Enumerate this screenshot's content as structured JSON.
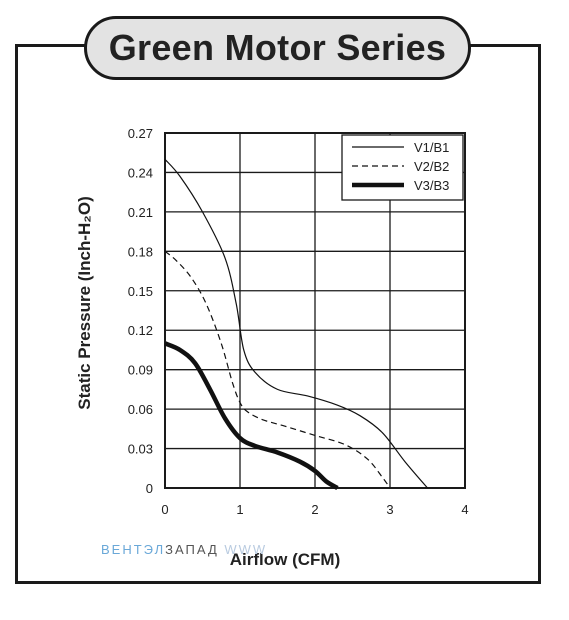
{
  "header": {
    "title": "Green Motor Series"
  },
  "watermark": {
    "part1": "ВЕНТЭЛ",
    "part2": "ЗАПАД",
    "part3": "WWW"
  },
  "colors": {
    "frame": "#1a1a1a",
    "title_fill": "#e3e3e3",
    "watermark_blue": "#6aa8d8"
  },
  "chart_data": {
    "type": "line",
    "title": "",
    "xlabel": "Airflow (CFM)",
    "ylabel": "Static Pressure (Inch-H₂O)",
    "xlim": [
      0,
      4
    ],
    "ylim": [
      0,
      0.27
    ],
    "xticks": [
      "0",
      "1",
      "2",
      "3",
      "4"
    ],
    "yticks": [
      "0",
      "0.03",
      "0.06",
      "0.09",
      "0.12",
      "0.15",
      "0.18",
      "0.21",
      "0.24",
      "0.27"
    ],
    "grid": true,
    "legend_position": "top-right",
    "series": [
      {
        "name": "V1/B1",
        "style": "solid-thin",
        "x": [
          0,
          0.2,
          0.5,
          0.8,
          0.95,
          1.05,
          1.2,
          1.5,
          1.9,
          2.3,
          2.6,
          2.9,
          3.2,
          3.5
        ],
        "y": [
          0.25,
          0.237,
          0.21,
          0.175,
          0.14,
          0.105,
          0.088,
          0.075,
          0.07,
          0.063,
          0.055,
          0.042,
          0.02,
          0
        ]
      },
      {
        "name": "V2/B2",
        "style": "dashed",
        "x": [
          0,
          0.15,
          0.35,
          0.55,
          0.75,
          0.9,
          1.0,
          1.1,
          1.3,
          1.6,
          2.0,
          2.4,
          2.7,
          2.9,
          3.0
        ],
        "y": [
          0.18,
          0.173,
          0.16,
          0.14,
          0.11,
          0.08,
          0.065,
          0.058,
          0.052,
          0.047,
          0.04,
          0.033,
          0.022,
          0.008,
          0
        ]
      },
      {
        "name": "V3/B3",
        "style": "solid-thick",
        "x": [
          0,
          0.2,
          0.4,
          0.6,
          0.8,
          1.0,
          1.2,
          1.5,
          1.8,
          2.0,
          2.15,
          2.3
        ],
        "y": [
          0.11,
          0.105,
          0.095,
          0.075,
          0.053,
          0.038,
          0.032,
          0.027,
          0.02,
          0.013,
          0.005,
          0
        ]
      }
    ]
  }
}
